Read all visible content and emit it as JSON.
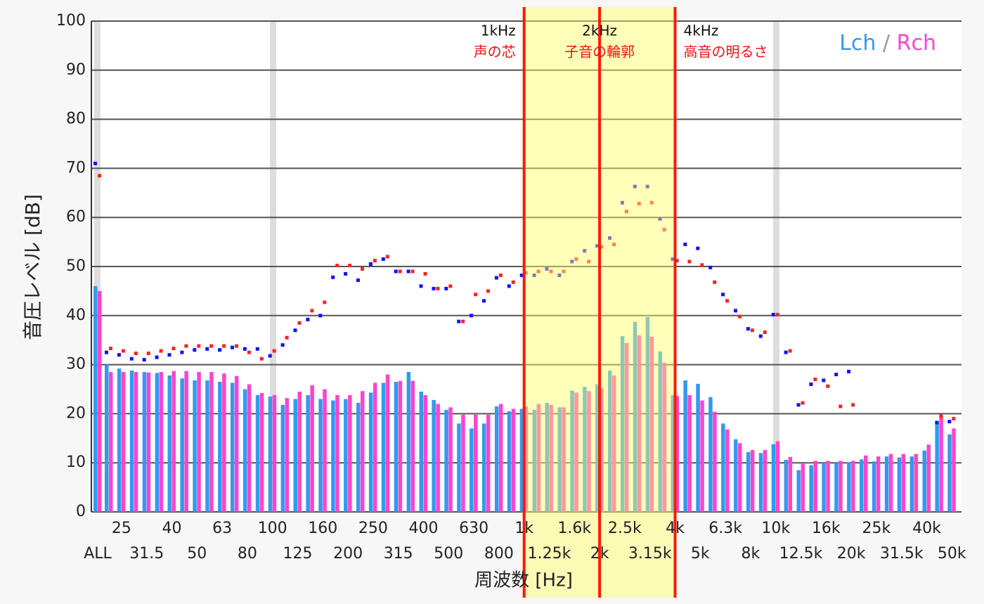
{
  "chart_data": {
    "type": "bar",
    "ylabel": "音圧レベル [dB]",
    "xlabel": "周波数 [Hz]",
    "ylim": [
      0,
      100
    ],
    "yticks": [
      0,
      10,
      20,
      30,
      40,
      50,
      60,
      70,
      80,
      90,
      100
    ],
    "grid": true,
    "legend": "top-right",
    "categories": [
      "ALL",
      null,
      "25",
      null,
      "31.5",
      null,
      "40",
      null,
      "50",
      null,
      "63",
      null,
      "80",
      null,
      "100",
      null,
      "125",
      null,
      "160",
      null,
      "200",
      null,
      "250",
      null,
      "315",
      null,
      "400",
      null,
      "500",
      null,
      "630",
      null,
      "800",
      null,
      "1k",
      null,
      "1.25k",
      null,
      "1.6k",
      null,
      "2k",
      null,
      "2.5k",
      null,
      "3.15k",
      null,
      "4k",
      null,
      "5k",
      null,
      "6.3k",
      null,
      "8k",
      null,
      "10k",
      null,
      "12.5k",
      null,
      "16k",
      null,
      "20k",
      null,
      "25k",
      null,
      "31.5k",
      null,
      "40k",
      null,
      "50k"
    ],
    "series": [
      {
        "name": "Lch",
        "color": "#3399ee",
        "dot_color": "#1111ff",
        "values": [
          46,
          30,
          29.2,
          28.8,
          28.5,
          28.3,
          27.8,
          27.2,
          26.8,
          26.8,
          26.5,
          26.3,
          25,
          23.8,
          23.5,
          21.8,
          23,
          23.8,
          23,
          22.7,
          23,
          22.2,
          24.3,
          26.3,
          26.5,
          28.5,
          24.5,
          22.8,
          20.8,
          18,
          17,
          18,
          21.5,
          20.5,
          21,
          20.8,
          22.2,
          21.3,
          24.7,
          25.5,
          26,
          28.8,
          35.8,
          38.7,
          39.7,
          32.7,
          23.8,
          26.8,
          26.1,
          23.4,
          18,
          14.8,
          12.2,
          12,
          13.8,
          10.6,
          8.5,
          9.5,
          10,
          10,
          10.1,
          10.7,
          10.3,
          11.3,
          11.1,
          11.3,
          12.5,
          18.2,
          15.8
        ],
        "dot_values": [
          71,
          32.5,
          32,
          31.2,
          31,
          31.5,
          32,
          32.5,
          33,
          33.2,
          33,
          33.5,
          33.2,
          33.2,
          31.8,
          34,
          37,
          39.2,
          40,
          47.8,
          48.5,
          47.2,
          50.5,
          51.5,
          49,
          49,
          46,
          45.5,
          45.5,
          38.8,
          40,
          43,
          47.7,
          46,
          48.2,
          48.2,
          49.5,
          48.2,
          51,
          53.2,
          54.2,
          55.8,
          63,
          66.3,
          66.3,
          59.7,
          51.5,
          54.5,
          53.7,
          49.8,
          44.3,
          41,
          37.3,
          35.8,
          40.2,
          32.5,
          21.8,
          26,
          26.8,
          28,
          28.6,
          null,
          null,
          null,
          null,
          null,
          null,
          18.2,
          18.4
        ]
      },
      {
        "name": "Rch",
        "color": "#ff44cc",
        "dot_color": "#ff2222",
        "values": [
          45,
          28.5,
          28.5,
          28.5,
          28.4,
          28.5,
          28.7,
          28.7,
          28.5,
          28.5,
          28.2,
          27.7,
          26,
          24.2,
          23.8,
          23.2,
          24.5,
          25.8,
          25,
          23.8,
          23.8,
          24.6,
          26.3,
          28,
          26.7,
          26.7,
          23.8,
          22,
          21.3,
          19.8,
          19.8,
          19.8,
          22,
          21,
          21.5,
          22,
          21.8,
          21.3,
          24.3,
          24.6,
          25.2,
          27.8,
          34.4,
          36,
          35.7,
          30.4,
          23.6,
          23.8,
          22.7,
          20.4,
          16.8,
          14,
          12.6,
          12.6,
          14.4,
          11.2,
          9.8,
          10.4,
          10.4,
          10.4,
          10.4,
          11.5,
          11.3,
          11.8,
          11.8,
          11.8,
          13.7,
          19.5,
          17
        ],
        "dot_values": [
          68.5,
          33.3,
          32.8,
          32.3,
          32.3,
          32.8,
          33.3,
          33.8,
          33.8,
          33.8,
          33.8,
          33.8,
          32.5,
          31.2,
          32.8,
          35.5,
          38.5,
          41,
          42.7,
          50.2,
          50.2,
          49.5,
          51.2,
          52,
          49,
          49,
          48.5,
          45.5,
          46,
          38.8,
          44.3,
          45,
          48.2,
          46.8,
          48.7,
          49,
          49,
          49,
          51.5,
          51,
          54,
          54.5,
          61.2,
          62.8,
          63,
          57.5,
          51.2,
          51,
          50.3,
          46.8,
          43,
          39.8,
          37,
          36.6,
          40.2,
          32.8,
          22.2,
          27,
          25.6,
          21.5,
          21.8,
          null,
          null,
          null,
          null,
          null,
          null,
          19.5,
          19
        ]
      }
    ],
    "annotations": [
      {
        "label": "1kHz",
        "note": "声の芯"
      },
      {
        "label": "2kHz",
        "note": "子音の輪郭"
      },
      {
        "label": "4kHz",
        "note": "高音の明るさ"
      }
    ]
  }
}
